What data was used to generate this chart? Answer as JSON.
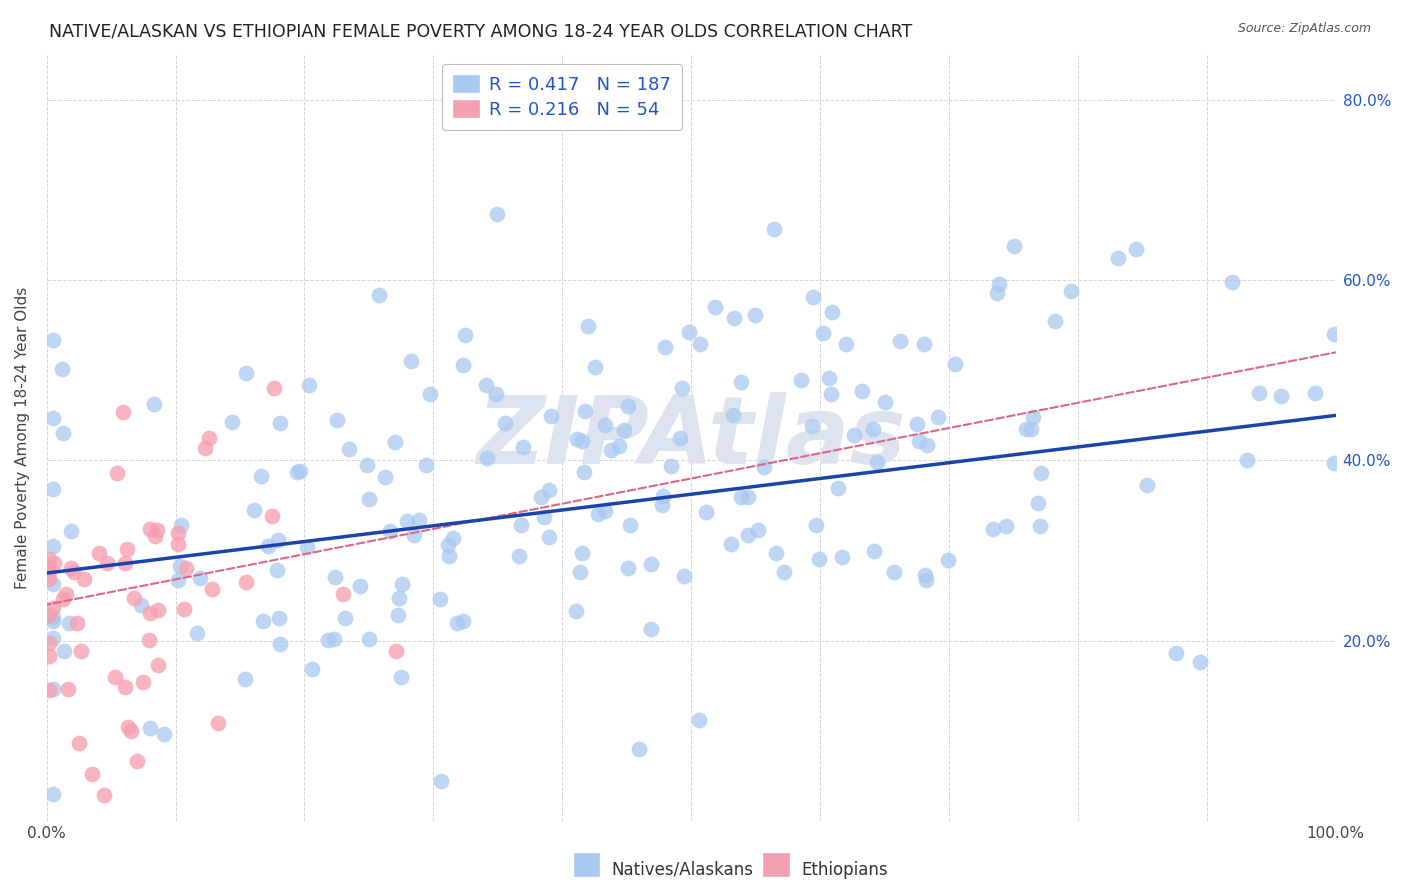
{
  "title": "NATIVE/ALASKAN VS ETHIOPIAN FEMALE POVERTY AMONG 18-24 YEAR OLDS CORRELATION CHART",
  "source": "Source: ZipAtlas.com",
  "ylabel": "Female Poverty Among 18-24 Year Olds",
  "xlim": [
    0,
    1.0
  ],
  "ylim": [
    0,
    0.85
  ],
  "xtick_vals": [
    0.0,
    0.1,
    0.2,
    0.3,
    0.4,
    0.5,
    0.6,
    0.7,
    0.8,
    0.9,
    1.0
  ],
  "xtick_labels": [
    "0.0%",
    "",
    "",
    "",
    "",
    "",
    "",
    "",
    "",
    "",
    "100.0%"
  ],
  "ytick_vals": [
    0.0,
    0.2,
    0.4,
    0.6,
    0.8
  ],
  "ytick_labels_right": [
    "",
    "20.0%",
    "40.0%",
    "60.0%",
    "80.0%"
  ],
  "native_R": 0.417,
  "native_N": 187,
  "ethiopian_R": 0.216,
  "ethiopian_N": 54,
  "native_color": "#a8c8f0",
  "ethiopian_color": "#f5a0b0",
  "native_line_color": "#1a44aa",
  "ethiopian_line_color": "#dd6688",
  "text_color": "#2255cc",
  "label_color": "#444444",
  "background_color": "#ffffff",
  "grid_color": "#cccccc",
  "watermark_text": "ZIPAtlas",
  "watermark_color": "#dde4f0",
  "title_fontsize": 12.5,
  "label_fontsize": 11,
  "tick_fontsize": 11,
  "legend_fontsize": 13,
  "source_fontsize": 9,
  "native_line_intercept": 0.275,
  "native_line_slope": 0.175,
  "ethiopian_line_intercept": 0.24,
  "ethiopian_line_slope": 0.28
}
